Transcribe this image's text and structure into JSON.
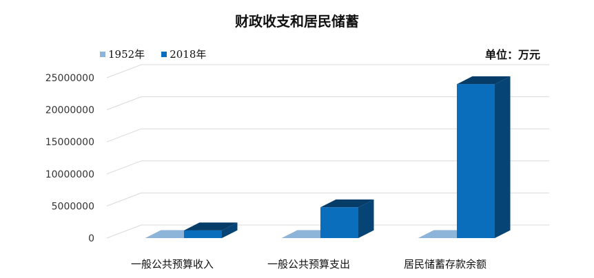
{
  "chart_data": {
    "type": "bar",
    "title": "财政收支和居民储蓄",
    "unit": "单位：万元",
    "categories": [
      "一般公共预算收入",
      "一般公共预算支出",
      "居民储蓄存款余额"
    ],
    "series": [
      {
        "name": "1952年",
        "values": [
          174,
          173,
          9
        ],
        "color": "#8db4d9"
      },
      {
        "name": "2018年",
        "values": [
          1200000,
          4800000,
          24000000
        ],
        "color": "#0a6ebd"
      }
    ],
    "yticks": [
      "0",
      "5000000",
      "10000000",
      "15000000",
      "20000000",
      "25000000"
    ],
    "ylim": [
      0,
      25000000
    ],
    "grid": true,
    "legend_position": "top-left"
  }
}
